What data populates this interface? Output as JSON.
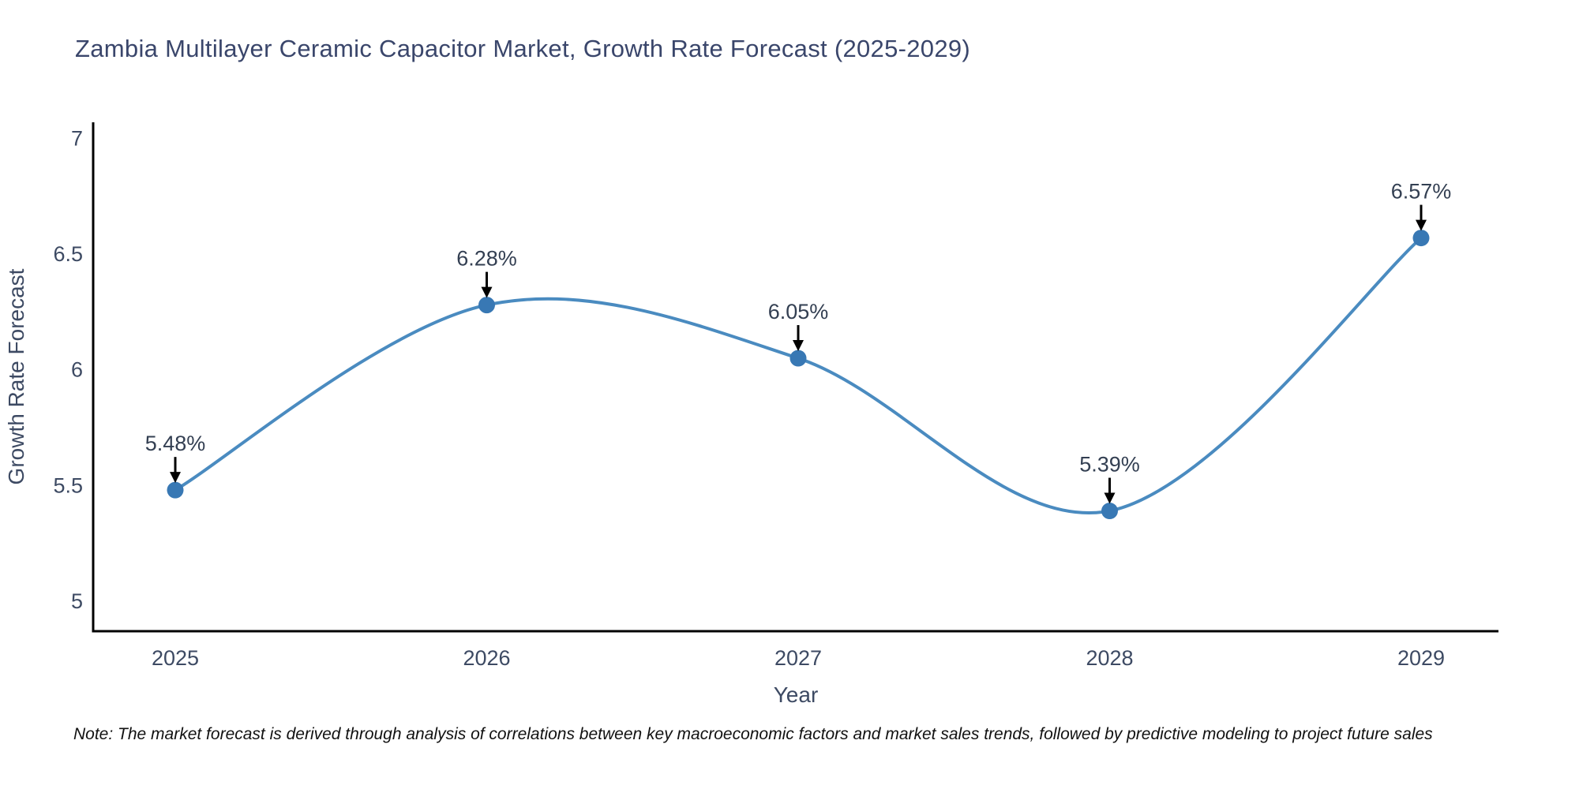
{
  "title": {
    "text": "Zambia Multilayer Ceramic Capacitor Market, Growth Rate Forecast (2025-2029)",
    "color": "#3a466b"
  },
  "chart_data": {
    "type": "line",
    "line_shape": "spline",
    "x": [
      "2025",
      "2026",
      "2027",
      "2028",
      "2029"
    ],
    "series": [
      {
        "name": "Growth Rate Forecast",
        "values": [
          5.48,
          6.28,
          6.05,
          5.39,
          6.57
        ]
      }
    ],
    "point_labels": [
      "5.48%",
      "6.28%",
      "6.05%",
      "5.39%",
      "6.57%"
    ],
    "xlabel": "Year",
    "ylabel": "Growth Rate Forecast",
    "ytick_labels": [
      "7",
      "6.5",
      "6",
      "5.5",
      "5"
    ],
    "ytick_values": [
      7,
      6.5,
      6,
      5.5,
      5
    ],
    "ylim": [
      4.87,
      7.07
    ],
    "grid": false,
    "legend": "none",
    "annotations_have_arrows": true,
    "colors": {
      "line": "#4a8bc0",
      "marker": "#3878b4",
      "axis": "#000000",
      "tick_text": "#3d4a63",
      "axis_title_text": "#3d4a63",
      "annotation_text": "#333f52",
      "arrow": "#000000"
    }
  },
  "note": {
    "text": "Note: The market forecast is derived through analysis of correlations between key macroeconomic factors and market sales trends, followed by predictive modeling to project future sales"
  }
}
